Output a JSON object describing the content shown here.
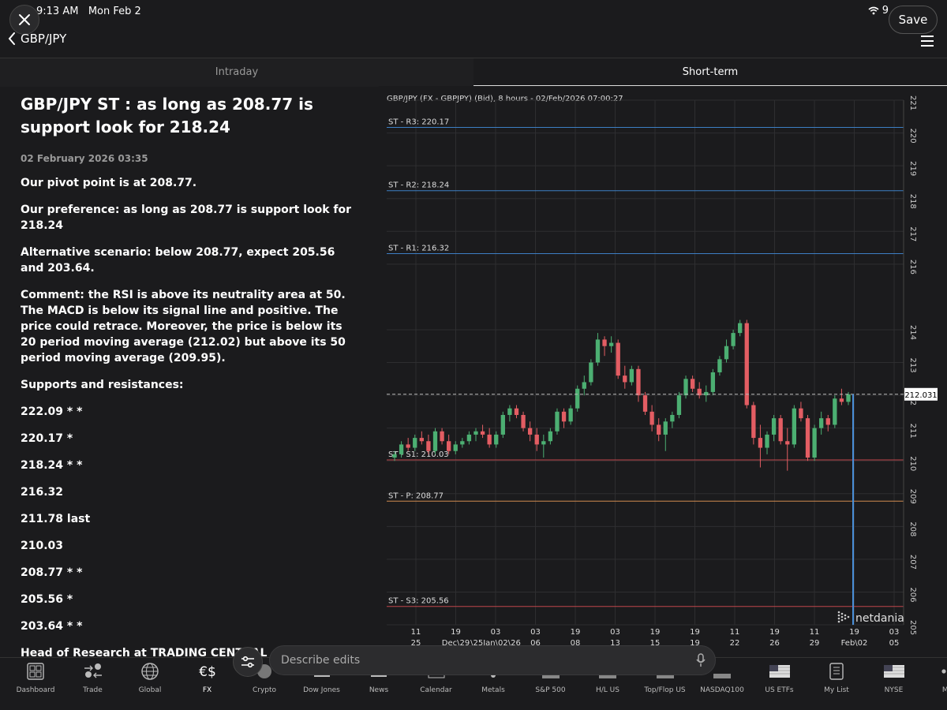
{
  "status": {
    "time": "9:13 AM",
    "day": "Mon Feb 2",
    "battery": "9"
  },
  "header": {
    "back_label": "GBP/JPY",
    "save_label": "Save"
  },
  "tabs": [
    {
      "label": "Intraday"
    },
    {
      "label": "Short-term"
    }
  ],
  "article": {
    "title": "GBP/JPY ST : as long as 208.77 is support look for 218.24",
    "date": "02 February 2026 03:35",
    "paragraphs": [
      "Our pivot point is at 208.77.",
      "Our preference: as long as 208.77 is support look for 218.24",
      "Alternative scenario: below 208.77, expect 205.56 and 203.64.",
      "Comment: the RSI is above its neutrality area at 50. The MACD is below its signal line and positive. The price could retrace. Moreover, the price is below its 20 period moving average (212.02) but above its 50 period moving average (209.95).",
      "Supports and resistances:"
    ],
    "levels": [
      "222.09 * *",
      "220.17 *",
      "218.24 * *",
      "216.32",
      "211.78 last",
      "210.03",
      "208.77 * *",
      "205.56 *",
      "203.64 * *"
    ],
    "footer": "Head of Research at TRADING CENTRAL"
  },
  "chart_data": {
    "type": "candlestick",
    "title": "GBP/JPY (FX - GBPJPY) (Bid), 8 hours - 02/Feb/2026 07:00:27",
    "ylim": [
      205,
      221
    ],
    "y_ticks": [
      205,
      206,
      207,
      208,
      209,
      210,
      211,
      212,
      213,
      214,
      216,
      217,
      218,
      219,
      220,
      221
    ],
    "last_price": "212.031",
    "levels": [
      {
        "label": "ST - R3: 220.17",
        "value": 220.17,
        "color": "#3d7fc4"
      },
      {
        "label": "ST - R2: 218.24",
        "value": 218.24,
        "color": "#3d7fc4"
      },
      {
        "label": "ST - R1: 216.32",
        "value": 216.32,
        "color": "#3d7fc4"
      },
      {
        "label": "ST - S1: 210.03",
        "value": 210.03,
        "color": "#c0464c"
      },
      {
        "label": "ST - P: 208.77",
        "value": 208.77,
        "color": "#d08a4f"
      },
      {
        "label": "ST - S3: 205.56",
        "value": 205.56,
        "color": "#c0464c"
      }
    ],
    "x_ticks": [
      {
        "top": "11",
        "bottom": "25"
      },
      {
        "top": "19",
        "bottom": "Dec\\29"
      },
      {
        "top": "03",
        "bottom": "\\25Jan\\02\\26"
      },
      {
        "top": "03",
        "bottom": "06"
      },
      {
        "top": "19",
        "bottom": "08"
      },
      {
        "top": "03",
        "bottom": "13"
      },
      {
        "top": "19",
        "bottom": "15"
      },
      {
        "top": "19",
        "bottom": "19"
      },
      {
        "top": "11",
        "bottom": "22"
      },
      {
        "top": "19",
        "bottom": "26"
      },
      {
        "top": "11",
        "bottom": "29"
      },
      {
        "top": "19",
        "bottom": "Feb\\02"
      },
      {
        "top": "03",
        "bottom": "05"
      }
    ],
    "candles": [
      [
        210.1,
        210.3,
        210.0,
        210.2
      ],
      [
        210.2,
        210.6,
        210.1,
        210.5
      ],
      [
        210.5,
        210.7,
        210.3,
        210.4
      ],
      [
        210.4,
        210.8,
        210.3,
        210.7
      ],
      [
        210.7,
        210.9,
        210.5,
        210.6
      ],
      [
        210.6,
        210.8,
        210.2,
        210.3
      ],
      [
        210.3,
        211.0,
        210.2,
        210.9
      ],
      [
        210.9,
        211.0,
        210.5,
        210.6
      ],
      [
        210.6,
        210.8,
        210.2,
        210.3
      ],
      [
        210.3,
        210.6,
        210.2,
        210.5
      ],
      [
        210.5,
        210.7,
        210.4,
        210.6
      ],
      [
        210.6,
        210.9,
        210.5,
        210.8
      ],
      [
        210.8,
        211.0,
        210.6,
        210.9
      ],
      [
        210.9,
        211.1,
        210.7,
        210.8
      ],
      [
        210.8,
        211.0,
        210.4,
        210.5
      ],
      [
        210.5,
        210.9,
        210.4,
        210.8
      ],
      [
        210.8,
        211.5,
        210.7,
        211.4
      ],
      [
        211.4,
        211.7,
        211.2,
        211.6
      ],
      [
        211.6,
        211.7,
        211.3,
        211.4
      ],
      [
        211.4,
        211.5,
        210.9,
        211.0
      ],
      [
        211.0,
        211.2,
        210.6,
        210.8
      ],
      [
        210.8,
        211.0,
        210.3,
        210.5
      ],
      [
        210.5,
        210.8,
        210.1,
        210.6
      ],
      [
        210.6,
        211.0,
        210.5,
        210.9
      ],
      [
        210.9,
        211.6,
        210.8,
        211.5
      ],
      [
        211.5,
        211.6,
        211.0,
        211.2
      ],
      [
        211.2,
        211.7,
        211.1,
        211.6
      ],
      [
        211.6,
        212.3,
        211.5,
        212.2
      ],
      [
        212.2,
        212.6,
        212.0,
        212.4
      ],
      [
        212.4,
        213.1,
        212.3,
        213.0
      ],
      [
        213.0,
        213.9,
        212.9,
        213.7
      ],
      [
        213.7,
        213.8,
        213.2,
        213.5
      ],
      [
        213.5,
        213.8,
        213.3,
        213.6
      ],
      [
        213.6,
        213.7,
        212.5,
        212.6
      ],
      [
        212.6,
        212.9,
        212.2,
        212.4
      ],
      [
        212.4,
        212.9,
        212.3,
        212.8
      ],
      [
        212.8,
        212.9,
        211.8,
        212.0
      ],
      [
        212.0,
        212.1,
        211.4,
        211.5
      ],
      [
        211.5,
        211.7,
        210.9,
        211.1
      ],
      [
        211.1,
        211.3,
        210.6,
        210.8
      ],
      [
        210.8,
        211.3,
        210.3,
        211.2
      ],
      [
        211.2,
        211.5,
        211.0,
        211.4
      ],
      [
        211.4,
        212.1,
        211.3,
        212.0
      ],
      [
        212.0,
        212.6,
        211.9,
        212.5
      ],
      [
        212.5,
        212.6,
        212.1,
        212.2
      ],
      [
        212.2,
        212.4,
        211.9,
        212.0
      ],
      [
        212.0,
        212.3,
        211.8,
        212.1
      ],
      [
        212.1,
        212.8,
        212.0,
        212.7
      ],
      [
        212.7,
        213.2,
        212.6,
        213.1
      ],
      [
        213.1,
        213.7,
        213.0,
        213.5
      ],
      [
        213.5,
        214.0,
        213.4,
        213.9
      ],
      [
        213.9,
        214.3,
        213.8,
        214.2
      ],
      [
        214.2,
        214.3,
        211.6,
        211.7
      ],
      [
        211.7,
        211.8,
        210.5,
        210.7
      ],
      [
        210.7,
        211.1,
        209.8,
        210.4
      ],
      [
        210.4,
        210.9,
        210.2,
        210.8
      ],
      [
        210.8,
        211.4,
        210.6,
        211.3
      ],
      [
        211.3,
        211.4,
        210.5,
        210.6
      ],
      [
        210.6,
        211.0,
        209.7,
        210.5
      ],
      [
        210.5,
        211.7,
        210.4,
        211.6
      ],
      [
        211.6,
        211.8,
        211.2,
        211.3
      ],
      [
        211.3,
        211.4,
        210.0,
        210.1
      ],
      [
        210.1,
        211.1,
        210.0,
        211.0
      ],
      [
        211.0,
        211.5,
        210.8,
        211.3
      ],
      [
        211.3,
        211.4,
        210.9,
        211.1
      ],
      [
        211.1,
        212.0,
        211.0,
        211.9
      ],
      [
        211.9,
        212.2,
        211.7,
        211.8
      ],
      [
        211.8,
        212.1,
        211.7,
        212.03
      ]
    ],
    "watermark": "netdania"
  },
  "edit_bar": {
    "placeholder": "Describe edits"
  },
  "toolbar": [
    {
      "label": "Dashboard",
      "icon": "dashboard-icon"
    },
    {
      "label": "Trade",
      "icon": "trade-icon"
    },
    {
      "label": "Global",
      "icon": "globe-icon"
    },
    {
      "label": "FX",
      "icon": "fx-icon"
    },
    {
      "label": "Crypto",
      "icon": "crypto-icon"
    },
    {
      "label": "Dow Jones",
      "icon": "dow-jones-icon"
    },
    {
      "label": "News",
      "icon": "news-icon"
    },
    {
      "label": "Calendar",
      "icon": "calendar-icon"
    },
    {
      "label": "Metals",
      "icon": "metals-icon"
    },
    {
      "label": "S&P 500",
      "icon": "sp500-icon"
    },
    {
      "label": "H/L US",
      "icon": "hl-us-icon"
    },
    {
      "label": "Top/Flop US",
      "icon": "topflop-icon"
    },
    {
      "label": "NASDAQ100",
      "icon": "nasdaq-icon"
    },
    {
      "label": "US ETFs",
      "icon": "us-etfs-icon"
    },
    {
      "label": "My List",
      "icon": "my-list-icon"
    },
    {
      "label": "NYSE",
      "icon": "nyse-icon"
    },
    {
      "label": "More",
      "icon": "more-icon"
    }
  ]
}
